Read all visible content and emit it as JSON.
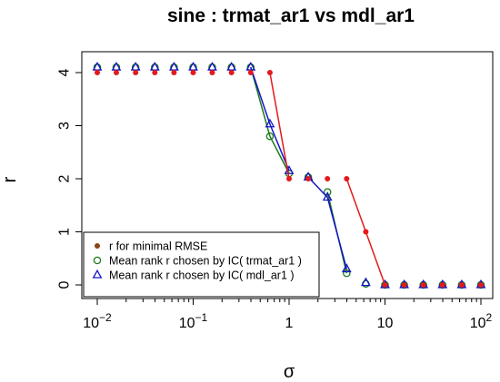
{
  "chart_data": {
    "type": "scatter",
    "title": "sine :  trmat_ar1 vs mdl_ar1",
    "xlabel": "σ",
    "ylabel": "r",
    "x_scale": "log10",
    "xlim": [
      0.01,
      100
    ],
    "ylim": [
      0,
      4
    ],
    "x_ticks": [
      {
        "value": 0.01,
        "base": "10",
        "exp": "−2"
      },
      {
        "value": 0.1,
        "base": "10",
        "exp": "−1"
      },
      {
        "value": 1,
        "base": "1",
        "exp": ""
      },
      {
        "value": 10,
        "base": "10",
        "exp": ""
      },
      {
        "value": 100,
        "base": "10",
        "exp": "2"
      }
    ],
    "y_ticks": [
      "0",
      "1",
      "2",
      "3",
      "4"
    ],
    "x": [
      0.01,
      0.0158,
      0.0251,
      0.0398,
      0.0631,
      0.1,
      0.158,
      0.251,
      0.398,
      0.631,
      1.0,
      1.585,
      2.512,
      3.981,
      6.31,
      10.0,
      15.85,
      25.12,
      39.81,
      63.1,
      100
    ],
    "series": [
      {
        "name": "r for minimal RMSE",
        "marker": "filled-circle",
        "color": "#e41a1c",
        "legend_color": "#8b4513",
        "values": [
          4,
          4,
          4,
          4,
          4,
          4,
          4,
          4,
          4,
          4,
          2,
          2,
          2,
          2,
          1,
          0,
          0,
          0,
          0,
          0,
          0
        ]
      },
      {
        "name": "Mean rank r chosen by IC( trmat_ar1 )",
        "marker": "open-circle",
        "color": "#1b7a1b",
        "values": [
          4.1,
          4.1,
          4.1,
          4.1,
          4.1,
          4.1,
          4.1,
          4.1,
          4.1,
          2.8,
          2.1,
          2.03,
          1.75,
          0.22,
          0.02,
          0,
          0,
          0,
          0,
          0,
          0
        ]
      },
      {
        "name": "Mean rank r chosen by IC( mdl_ar1 )",
        "marker": "open-triangle",
        "color": "#1414c8",
        "values": [
          4.1,
          4.1,
          4.1,
          4.1,
          4.1,
          4.1,
          4.1,
          4.1,
          4.1,
          3.03,
          2.15,
          2.03,
          1.65,
          0.3,
          0.04,
          0,
          0,
          0,
          0,
          0,
          0
        ]
      }
    ],
    "legend_position": "bottom-left",
    "grid": false
  }
}
